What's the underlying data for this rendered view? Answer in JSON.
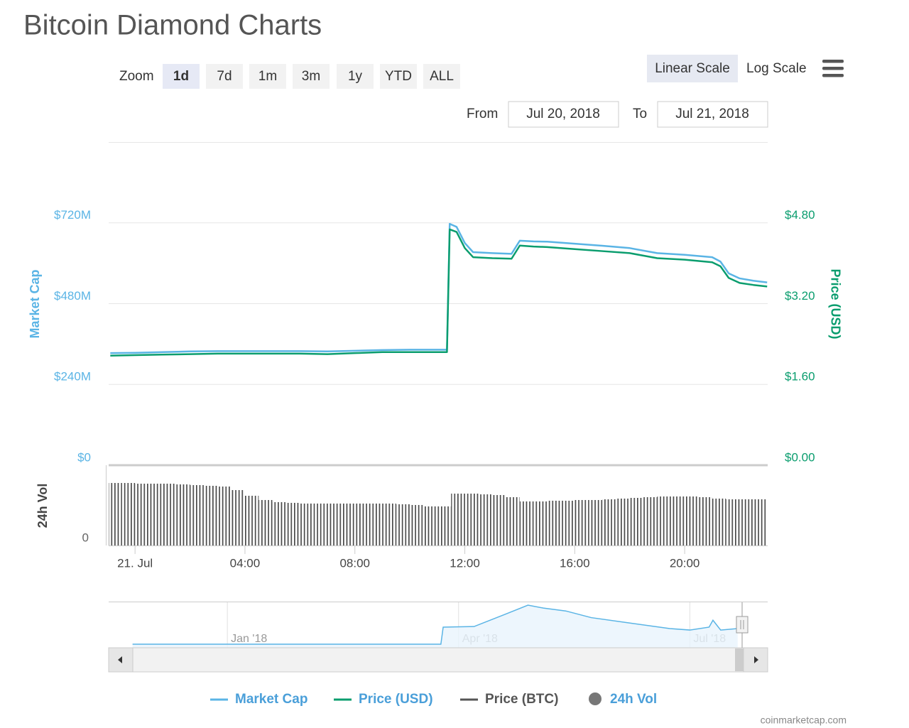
{
  "title": "Bitcoin Diamond Charts",
  "ui": {
    "zoom_label": "Zoom",
    "zoom_buttons": [
      "1d",
      "7d",
      "1m",
      "3m",
      "1y",
      "YTD",
      "ALL"
    ],
    "selected_zoom": "1d",
    "scale_buttons": [
      "Linear Scale",
      "Log Scale"
    ],
    "selected_scale": "Linear Scale",
    "from_label": "From",
    "from": "Jul 20, 2018",
    "to_label": "To",
    "to": "Jul 21, 2018"
  },
  "credit": "coinmarketcap.com",
  "chart_data": [
    {
      "type": "line",
      "y_label": "Market Cap",
      "y2_label": "Price (USD)",
      "x": [
        -0.9,
        0,
        1,
        2,
        3,
        4,
        5,
        6,
        7,
        8,
        9,
        10,
        11,
        11.35,
        11.45,
        11.7,
        12,
        12.3,
        13,
        13.7,
        14,
        14.5,
        15,
        16,
        17,
        18,
        19,
        20,
        21,
        21.3,
        21.6,
        22,
        22.5,
        23
      ],
      "xlim": [
        -0.96,
        23.02
      ],
      "ylim": [
        0,
        960000000
      ],
      "yticks": [
        {
          "value": 0,
          "label": "$0"
        },
        {
          "value": 240000000,
          "label": "$240M"
        },
        {
          "value": 480000000,
          "label": "$480M"
        },
        {
          "value": 720000000,
          "label": "$720M"
        }
      ],
      "y2lim": [
        0,
        6.4
      ],
      "y2ticks": [
        {
          "value": 0,
          "label": "$0.00"
        },
        {
          "value": 1.6,
          "label": "$1.60"
        },
        {
          "value": 3.2,
          "label": "$3.20"
        },
        {
          "value": 4.8,
          "label": "$4.80"
        }
      ],
      "grid": true,
      "series": [
        {
          "name": "Market Cap",
          "color": "#5ab4e5",
          "values": [
            333000000,
            334000000,
            336000000,
            338000000,
            339000000,
            339000000,
            339000000,
            339000000,
            338000000,
            340000000,
            342000000,
            343000000,
            343000000,
            343000000,
            717000000,
            708000000,
            660000000,
            633000000,
            630000000,
            628000000,
            667000000,
            665000000,
            664000000,
            658000000,
            652000000,
            645000000,
            630000000,
            625000000,
            618000000,
            605000000,
            570000000,
            555000000,
            548000000,
            543000000
          ]
        },
        {
          "name": "Price (USD)",
          "color": "#0a9d6e",
          "axis": "y2",
          "values": [
            2.17,
            2.18,
            2.19,
            2.2,
            2.21,
            2.21,
            2.21,
            2.21,
            2.2,
            2.22,
            2.24,
            2.24,
            2.24,
            2.24,
            4.67,
            4.62,
            4.3,
            4.12,
            4.1,
            4.09,
            4.35,
            4.33,
            4.32,
            4.28,
            4.24,
            4.2,
            4.1,
            4.07,
            4.02,
            3.94,
            3.71,
            3.61,
            3.57,
            3.54
          ]
        }
      ],
      "hidden_series": [
        {
          "name": "Price (BTC)",
          "color": "#555555"
        }
      ]
    },
    {
      "type": "bar",
      "y_label": "24h Vol",
      "x": [
        -0.75,
        -0.25,
        0.25,
        0.75,
        1.25,
        1.75,
        2.25,
        2.75,
        3.25,
        3.75,
        4.25,
        4.75,
        5.25,
        5.75,
        6.25,
        6.75,
        7.25,
        7.75,
        8.25,
        8.75,
        9.25,
        9.75,
        10.25,
        10.75,
        11.25,
        11.75,
        12.25,
        12.75,
        13.25,
        13.75,
        14.25,
        14.75,
        15.25,
        15.75,
        16.25,
        16.75,
        17.25,
        17.75,
        18.25,
        18.75,
        19.25,
        19.75,
        20.25,
        20.75,
        21.25,
        21.75,
        22.25,
        22.75
      ],
      "xlim": [
        -0.96,
        23.02
      ],
      "xticks": [
        {
          "value": 0,
          "label": "21. Jul"
        },
        {
          "value": 4,
          "label": "04:00"
        },
        {
          "value": 8,
          "label": "08:00"
        },
        {
          "value": 12,
          "label": "12:00"
        },
        {
          "value": 16,
          "label": "16:00"
        },
        {
          "value": 20,
          "label": "20:00"
        }
      ],
      "ylim": [
        0,
        110
      ],
      "yticks": [
        0
      ],
      "series": [
        {
          "name": "24h Vol",
          "color": "#555555",
          "values": [
            88,
            88,
            87,
            87,
            87,
            86,
            85,
            84,
            83,
            78,
            70,
            64,
            61,
            60,
            59,
            59,
            59,
            59,
            59,
            59,
            59,
            58,
            57,
            55,
            55,
            73,
            73,
            72,
            71,
            68,
            62,
            62,
            63,
            63,
            64,
            64,
            65,
            66,
            67,
            68,
            69,
            69,
            69,
            68,
            66,
            65,
            65,
            65
          ]
        }
      ]
    },
    {
      "type": "area",
      "x": [
        -1.23,
        2.77,
        2.8,
        3.2,
        3.6,
        3.9,
        4.1,
        4.39,
        4.72,
        5.2,
        5.74,
        6.0,
        6.25,
        6.3,
        6.4,
        6.62
      ],
      "xlim": [
        -1.54,
        7.01
      ],
      "xticks": [
        {
          "value": 0,
          "label": "Jan '18"
        },
        {
          "value": 3,
          "label": "Apr '18"
        },
        {
          "value": 6,
          "label": "Jul '18"
        }
      ],
      "ylim": [
        0,
        1450000000
      ],
      "series": [
        {
          "name": "Market Cap",
          "color": "#5ab4e5",
          "values": [
            0,
            0,
            590000000,
            610000000,
            1030000000,
            1350000000,
            1250000000,
            1150000000,
            920000000,
            740000000,
            540000000,
            490000000,
            590000000,
            830000000,
            490000000,
            540000000
          ]
        }
      ]
    }
  ]
}
